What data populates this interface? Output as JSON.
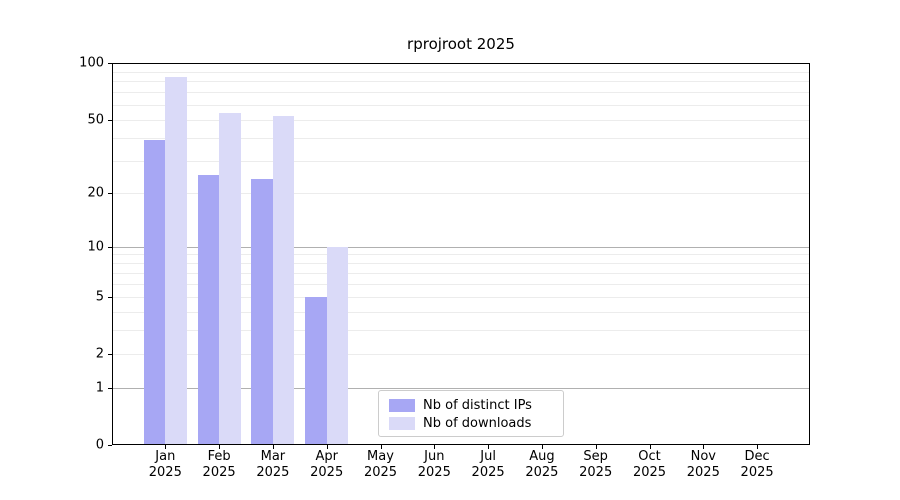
{
  "chart_data": {
    "type": "bar",
    "title": "rprojroot 2025",
    "scale": "log1p",
    "grid": true,
    "legend_position": "lower center-left",
    "categories": [
      "Jan 2025",
      "Feb 2025",
      "Mar 2025",
      "Apr 2025",
      "May 2025",
      "Jun 2025",
      "Jul 2025",
      "Aug 2025",
      "Sep 2025",
      "Oct 2025",
      "Nov 2025",
      "Dec 2025"
    ],
    "series": [
      {
        "name": "Nb of distinct IPs",
        "color": "#a7a7f4",
        "values": [
          39,
          25,
          24,
          5,
          null,
          null,
          null,
          null,
          null,
          null,
          null,
          null
        ]
      },
      {
        "name": "Nb of downloads",
        "color": "#dadaf8",
        "values": [
          84,
          54,
          52,
          10,
          null,
          null,
          null,
          null,
          null,
          null,
          null,
          null
        ]
      }
    ],
    "yticks": [
      0,
      1,
      2,
      5,
      10,
      20,
      50,
      100
    ],
    "ylim": [
      0,
      100
    ],
    "xlabel": "",
    "ylabel": "",
    "minor_gridlines": [
      2,
      3,
      4,
      5,
      6,
      7,
      8,
      9,
      20,
      30,
      40,
      50,
      60,
      70,
      80,
      90
    ],
    "major_gridlines": [
      1,
      10
    ],
    "axis_color": "#000000",
    "minor_grid_color": "#ececec",
    "major_grid_color": "#b0b0b0"
  }
}
